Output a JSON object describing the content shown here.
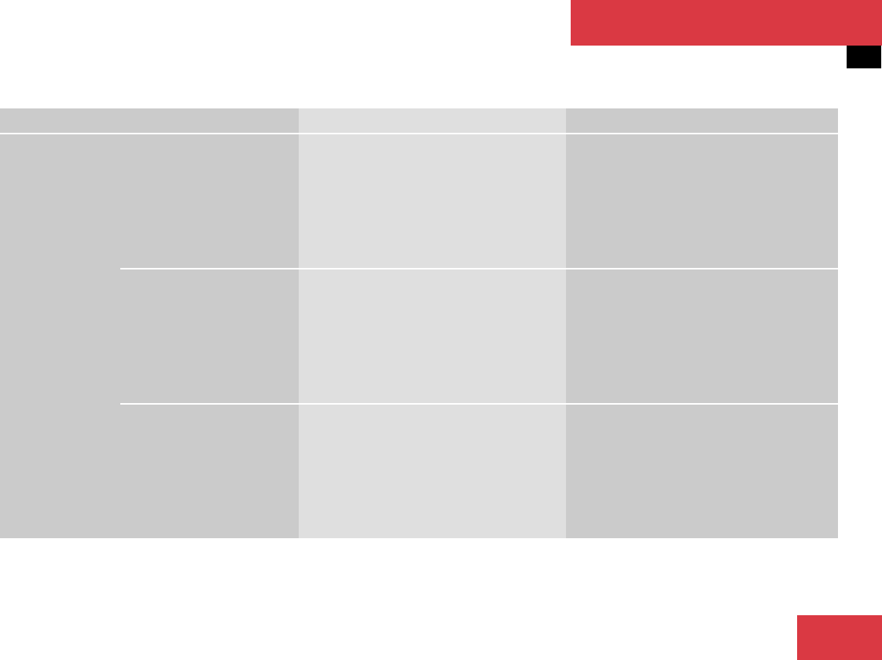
{
  "colors": {
    "accent": "#da3943",
    "cell_dark": "#cbcbcb",
    "cell_light": "#dfdfdf",
    "tab_marker": "#000000"
  },
  "table": {
    "header": [
      "",
      "",
      ""
    ],
    "group_label": "",
    "rows": [
      {
        "sub": "",
        "col2": "",
        "col3": ""
      },
      {
        "sub": "",
        "col2": "",
        "col3": ""
      },
      {
        "sub": "",
        "col2": "",
        "col3": ""
      }
    ]
  }
}
